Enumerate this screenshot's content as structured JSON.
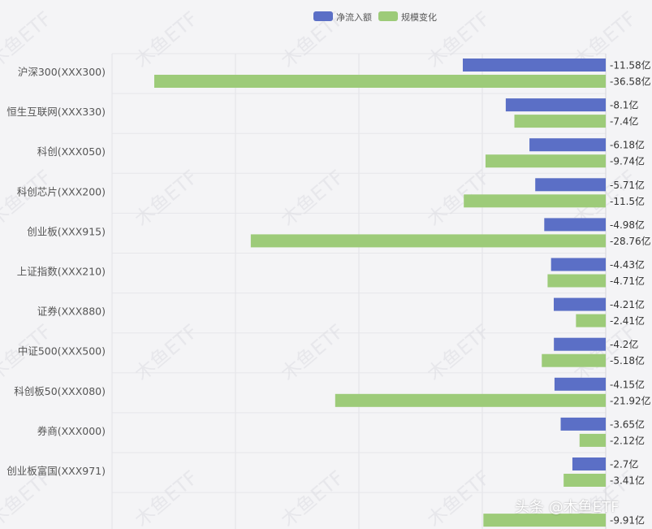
{
  "legend": [
    {
      "label": "净流入额",
      "color": "#5b6fc6"
    },
    {
      "label": "规模变化",
      "color": "#9dcb79"
    }
  ],
  "watermark": "木鱼ETF",
  "credit": "头条 @木鱼ETF",
  "chart_data": {
    "type": "bar",
    "orientation": "horizontal",
    "categories": [
      "沪深300(XXX300)",
      "恒生互联网(XXX330)",
      "科创(XXX050)",
      "科创芯片(XXX200)",
      "创业板(XXX915)",
      "上证指数(XXX210)",
      "证券(XXX880)",
      "中证500(XXX500)",
      "科创板50(XXX080)",
      "券商(XXX000)",
      "创业板富国(XXX971)",
      ""
    ],
    "series": [
      {
        "name": "净流入额",
        "color": "#5b6fc6",
        "values": [
          -11.58,
          -8.1,
          -6.18,
          -5.71,
          -4.98,
          -4.43,
          -4.21,
          -4.2,
          -4.15,
          -3.65,
          -2.7,
          null
        ],
        "labels": [
          "-11.58亿",
          "-8.1亿",
          "-6.18亿",
          "-5.71亿",
          "-4.98亿",
          "-4.43亿",
          "-4.21亿",
          "-4.2亿",
          "-4.15亿",
          "-3.65亿",
          "-2.7亿",
          ""
        ]
      },
      {
        "name": "规模变化",
        "color": "#9dcb79",
        "values": [
          -36.58,
          -7.4,
          -9.74,
          -11.5,
          -28.76,
          -4.71,
          -2.41,
          -5.18,
          -21.92,
          -2.12,
          -3.41,
          -9.91
        ],
        "labels": [
          "-36.58亿",
          "-7.4亿",
          "-9.74亿",
          "-11.5亿",
          "-28.76亿",
          "-4.71亿",
          "-2.41亿",
          "-5.18亿",
          "-21.92亿",
          "-2.12亿",
          "-3.41亿",
          "-9.91亿"
        ]
      }
    ],
    "xlim": [
      -40,
      0
    ],
    "grid": true,
    "legend_position": "top-center"
  }
}
